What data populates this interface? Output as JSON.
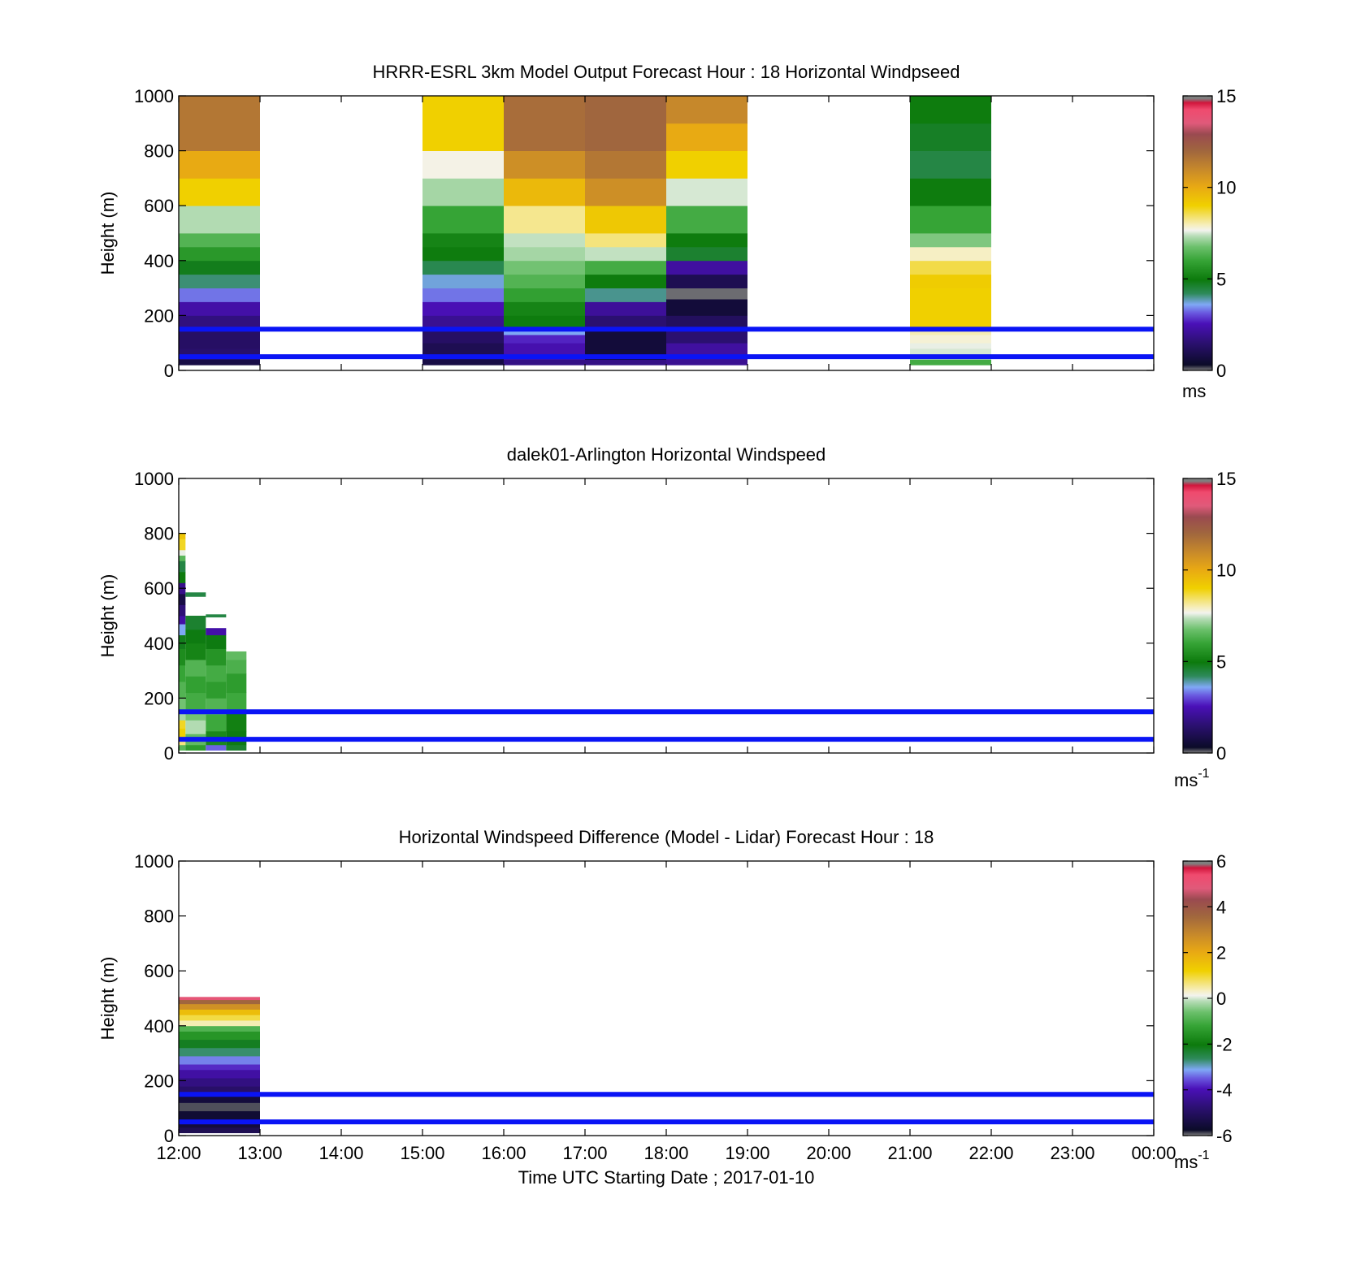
{
  "colors": {
    "overlay_line": "#0a14f5",
    "frame": "#000000",
    "background": "#ffffff"
  },
  "colorbars": {
    "windspeed": {
      "min": 0,
      "max": 15,
      "ticks": [
        "0",
        "5",
        "10",
        "15"
      ],
      "stops": [
        [
          0.0,
          "#7f7f7f"
        ],
        [
          0.02,
          "#0b0b28"
        ],
        [
          0.1,
          "#2b1070"
        ],
        [
          0.17,
          "#4a10b8"
        ],
        [
          0.21,
          "#6a5ae0"
        ],
        [
          0.24,
          "#7fa8f5"
        ],
        [
          0.28,
          "#2e8a5a"
        ],
        [
          0.33,
          "#0c7a0c"
        ],
        [
          0.4,
          "#36a436"
        ],
        [
          0.45,
          "#6cc06c"
        ],
        [
          0.49,
          "#b8ddb8"
        ],
        [
          0.51,
          "#f3f3ee"
        ],
        [
          0.53,
          "#f6eebc"
        ],
        [
          0.6,
          "#f0d000"
        ],
        [
          0.67,
          "#e8a814"
        ],
        [
          0.73,
          "#c88a2a"
        ],
        [
          0.8,
          "#a0663e"
        ],
        [
          0.86,
          "#9a4a50"
        ],
        [
          0.9,
          "#e05a7a"
        ],
        [
          0.95,
          "#f04a6e"
        ],
        [
          0.975,
          "#d0163c"
        ],
        [
          0.99,
          "#7f7f7f"
        ],
        [
          1.0,
          "#7f7f7f"
        ]
      ]
    },
    "difference": {
      "min": -6,
      "max": 6,
      "ticks": [
        "-6",
        "-4",
        "-2",
        "0",
        "2",
        "4",
        "6"
      ]
    }
  },
  "x_ticks": [
    "12:00",
    "13:00",
    "14:00",
    "15:00",
    "16:00",
    "17:00",
    "18:00",
    "19:00",
    "20:00",
    "21:00",
    "22:00",
    "23:00",
    "00:00"
  ],
  "y_ticks": [
    "0",
    "200",
    "400",
    "600",
    "800",
    "1000"
  ],
  "unit_label": "ms",
  "unit_exponent": "-1",
  "xlabel": "Time UTC  Starting Date ; 2017-01-10",
  "chart_data": [
    {
      "type": "heatmap",
      "title": "HRRR-ESRL 3km Model Output   Forecast Hour : 18 Horizontal Windpseed",
      "ylabel": "Height (m)",
      "ylim": [
        0,
        1000
      ],
      "xlim": [
        "12:00",
        "00:00"
      ],
      "colorbar_label": "ms",
      "reference_heights_m": [
        150,
        50
      ],
      "columns": [
        {
          "start": "12:00",
          "end": "13:00",
          "cells": [
            [
              20,
              40,
              0.8
            ],
            [
              40,
              80,
              1.4
            ],
            [
              80,
              150,
              1.3
            ],
            [
              150,
              200,
              1.7
            ],
            [
              200,
              250,
              2.3
            ],
            [
              250,
              300,
              3.3
            ],
            [
              300,
              350,
              4.1
            ],
            [
              350,
              400,
              4.8
            ],
            [
              400,
              450,
              5.7
            ],
            [
              450,
              500,
              6.4
            ],
            [
              500,
              600,
              7.3
            ],
            [
              600,
              700,
              9.0
            ],
            [
              700,
              800,
              10.0
            ],
            [
              800,
              1000,
              11.5
            ]
          ]
        },
        {
          "start": "15:00",
          "end": "16:00",
          "cells": [
            [
              20,
              40,
              0.8
            ],
            [
              40,
              100,
              1.0
            ],
            [
              100,
              150,
              1.3
            ],
            [
              150,
              200,
              2.0
            ],
            [
              200,
              250,
              2.5
            ],
            [
              250,
              300,
              3.3
            ],
            [
              300,
              350,
              3.7
            ],
            [
              350,
              400,
              4.3
            ],
            [
              400,
              450,
              5.0
            ],
            [
              450,
              500,
              5.2
            ],
            [
              500,
              600,
              6.0
            ],
            [
              600,
              700,
              7.2
            ],
            [
              700,
              800,
              7.7
            ],
            [
              800,
              1000,
              9.0
            ]
          ]
        },
        {
          "start": "16:00",
          "end": "17:00",
          "cells": [
            [
              20,
              40,
              1.8
            ],
            [
              40,
              100,
              2.4
            ],
            [
              100,
              130,
              2.7
            ],
            [
              130,
              150,
              3.6
            ],
            [
              150,
              200,
              5.0
            ],
            [
              200,
              250,
              5.2
            ],
            [
              250,
              300,
              5.9
            ],
            [
              300,
              350,
              6.4
            ],
            [
              350,
              400,
              6.8
            ],
            [
              400,
              450,
              7.2
            ],
            [
              450,
              500,
              7.4
            ],
            [
              500,
              600,
              8.2
            ],
            [
              600,
              700,
              9.6
            ],
            [
              700,
              800,
              10.8
            ],
            [
              800,
              1000,
              11.8
            ]
          ]
        },
        {
          "start": "17:00",
          "end": "18:00",
          "cells": [
            [
              20,
              40,
              1.8
            ],
            [
              40,
              150,
              0.6
            ],
            [
              150,
              200,
              1.5
            ],
            [
              200,
              250,
              2.1
            ],
            [
              250,
              300,
              4.0
            ],
            [
              300,
              350,
              5.0
            ],
            [
              350,
              400,
              6.2
            ],
            [
              400,
              450,
              7.4
            ],
            [
              450,
              500,
              8.3
            ],
            [
              500,
              600,
              9.2
            ],
            [
              600,
              700,
              10.8
            ],
            [
              700,
              800,
              11.5
            ],
            [
              800,
              1000,
              12.0
            ]
          ]
        },
        {
          "start": "18:00",
          "end": "19:00",
          "cells": [
            [
              20,
              40,
              2.0
            ],
            [
              40,
              100,
              2.2
            ],
            [
              100,
              150,
              1.5
            ],
            [
              150,
              200,
              1.2
            ],
            [
              200,
              260,
              0.6
            ],
            [
              260,
              300,
              0.05
            ],
            [
              300,
              350,
              1.0
            ],
            [
              350,
              400,
              2.2
            ],
            [
              400,
              450,
              4.6
            ],
            [
              450,
              500,
              5.0
            ],
            [
              500,
              600,
              6.2
            ],
            [
              600,
              700,
              7.5
            ],
            [
              700,
              800,
              9.0
            ],
            [
              800,
              900,
              10.0
            ],
            [
              900,
              1000,
              11.0
            ]
          ]
        },
        {
          "start": "21:00",
          "end": "22:00",
          "cells": [
            [
              20,
              40,
              6.2
            ],
            [
              40,
              60,
              7.3
            ],
            [
              60,
              80,
              7.5
            ],
            [
              80,
              100,
              7.6
            ],
            [
              100,
              130,
              7.8
            ],
            [
              130,
              150,
              8.0
            ],
            [
              150,
              200,
              9.0
            ],
            [
              200,
              300,
              9.0
            ],
            [
              300,
              350,
              9.1
            ],
            [
              350,
              400,
              8.6
            ],
            [
              400,
              450,
              7.9
            ],
            [
              450,
              500,
              6.9
            ],
            [
              500,
              600,
              6.0
            ],
            [
              600,
              700,
              5.0
            ],
            [
              700,
              800,
              4.4
            ],
            [
              800,
              900,
              4.7
            ],
            [
              900,
              1000,
              5.0
            ]
          ]
        }
      ]
    },
    {
      "type": "heatmap",
      "title": "dalek01-Arlington  Horizontal Windspeed",
      "ylabel": "Height (m)",
      "ylim": [
        0,
        1000
      ],
      "xlim": [
        "12:00",
        "00:00"
      ],
      "colorbar_label": "ms-1",
      "reference_heights_m": [
        150,
        50
      ],
      "columns": [
        {
          "start": "12:00",
          "end": "12:05",
          "cells": [
            [
              10,
              30,
              6.5
            ],
            [
              30,
              60,
              8.3
            ],
            [
              60,
              90,
              9.0
            ],
            [
              90,
              120,
              8.8
            ],
            [
              120,
              150,
              7.2
            ],
            [
              150,
              200,
              6.8
            ],
            [
              200,
              260,
              6.4
            ],
            [
              260,
              320,
              6.0
            ],
            [
              320,
              380,
              5.4
            ],
            [
              380,
              430,
              4.8
            ],
            [
              430,
              470,
              3.6
            ],
            [
              470,
              500,
              2.3
            ],
            [
              500,
              540,
              1.6
            ],
            [
              540,
              580,
              0.8
            ],
            [
              580,
              620,
              1.9
            ],
            [
              620,
              660,
              5.0
            ],
            [
              660,
              700,
              4.4
            ],
            [
              700,
              720,
              6.5
            ],
            [
              720,
              740,
              7.6
            ],
            [
              740,
              780,
              8.8
            ],
            [
              780,
              800,
              9.3
            ]
          ]
        },
        {
          "start": "12:05",
          "end": "12:20",
          "cells": [
            [
              10,
              30,
              5.8
            ],
            [
              30,
              70,
              6.6
            ],
            [
              70,
              120,
              7.3
            ],
            [
              120,
              160,
              6.8
            ],
            [
              160,
              220,
              6.2
            ],
            [
              220,
              280,
              5.9
            ],
            [
              280,
              340,
              6.4
            ],
            [
              340,
              400,
              5.2
            ],
            [
              400,
              450,
              4.9
            ],
            [
              450,
              500,
              4.6
            ],
            [
              570,
              585,
              4.4
            ]
          ]
        },
        {
          "start": "12:20",
          "end": "12:35",
          "cells": [
            [
              10,
              30,
              3.2
            ],
            [
              30,
              80,
              5.3
            ],
            [
              80,
              140,
              6.1
            ],
            [
              140,
              200,
              6.4
            ],
            [
              200,
              260,
              5.8
            ],
            [
              260,
              320,
              6.2
            ],
            [
              320,
              380,
              5.6
            ],
            [
              380,
              430,
              4.9
            ],
            [
              430,
              455,
              2.3
            ],
            [
              495,
              505,
              4.4
            ]
          ]
        },
        {
          "start": "12:35",
          "end": "12:50",
          "cells": [
            [
              10,
              30,
              4.6
            ],
            [
              30,
              80,
              4.9
            ],
            [
              80,
              150,
              5.1
            ],
            [
              150,
              220,
              6.1
            ],
            [
              220,
              290,
              5.8
            ],
            [
              290,
              340,
              6.3
            ],
            [
              340,
              370,
              6.6
            ]
          ]
        }
      ]
    },
    {
      "type": "heatmap",
      "title": "Horizontal Windspeed Difference (Model - Lidar) Forecast Hour : 18",
      "ylabel": "Height (m)",
      "ylim": [
        0,
        1000
      ],
      "xlim": [
        "12:00",
        "00:00"
      ],
      "colorbar_label": "ms-1",
      "reference_heights_m": [
        150,
        50
      ],
      "columns": [
        {
          "start": "12:00",
          "end": "13:00",
          "cells": [
            [
              10,
              30,
              -5.2
            ],
            [
              30,
              60,
              -5.5
            ],
            [
              60,
              90,
              -5.6
            ],
            [
              90,
              120,
              -5.9
            ],
            [
              120,
              150,
              -5.5
            ],
            [
              150,
              180,
              -4.9
            ],
            [
              180,
              210,
              -4.6
            ],
            [
              210,
              240,
              -4.2
            ],
            [
              240,
              260,
              -3.8
            ],
            [
              260,
              290,
              -3.3
            ],
            [
              290,
              320,
              -2.7
            ],
            [
              320,
              350,
              -2.2
            ],
            [
              350,
              380,
              -1.5
            ],
            [
              380,
              400,
              -0.9
            ],
            [
              400,
              420,
              0.4
            ],
            [
              420,
              440,
              0.9
            ],
            [
              440,
              460,
              1.6
            ],
            [
              460,
              480,
              2.6
            ],
            [
              480,
              495,
              3.6
            ],
            [
              495,
              505,
              5.0
            ]
          ]
        }
      ]
    }
  ]
}
